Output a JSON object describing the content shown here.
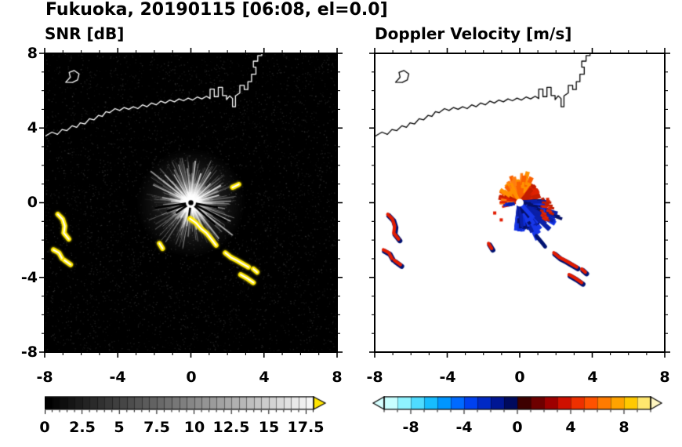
{
  "title": "Fukuoka, 20190115 [06:08, el=0.0]",
  "panels": {
    "snr": {
      "label": "SNR [dB]",
      "x_ticks": [
        "-8",
        "-4",
        "0",
        "4",
        "8"
      ],
      "y_ticks": [
        "8",
        "4",
        "0",
        "-4",
        "-8"
      ],
      "colorbar_ticks": [
        "0",
        "2.5",
        "5",
        "7.5",
        "10",
        "12.5",
        "15",
        "17.5"
      ]
    },
    "doppler": {
      "label": "Doppler Velocity [m/s]",
      "x_ticks": [
        "-8",
        "-4",
        "0",
        "4",
        "8"
      ],
      "colorbar_ticks": [
        "-8",
        "-4",
        "0",
        "4",
        "8"
      ]
    }
  },
  "chart_data": [
    {
      "type": "heatmap",
      "title": "SNR [dB]",
      "xlim": [
        -8,
        8
      ],
      "ylim": [
        -8,
        8
      ],
      "x_ticks": [
        -8,
        -4,
        0,
        4,
        8
      ],
      "y_ticks": [
        -8,
        -4,
        0,
        4,
        8
      ],
      "colorbar": {
        "range": [
          0,
          18
        ],
        "tick_values": [
          0,
          2.5,
          5,
          7.5,
          10,
          12.5,
          15,
          17.5
        ],
        "colormap": "black-to-white grayscale, yellow overflow arrow"
      },
      "content": "Radar PPI scan: bright radial SNR streaks from radar at origin on black background; yellow high-SNR echo arcs near (-7.3,-0.6)..(-6.7,-2.0), (-7.5,-2.5)..(-6.6,-3.3), chain from (0,-0.9) to (3.4,-4.3), small echo (2.3,0.8)..(2.6,1.0); white coastline of Fukuoka bay across the top"
    },
    {
      "type": "heatmap",
      "title": "Doppler Velocity [m/s]",
      "xlim": [
        -8,
        8
      ],
      "ylim": [
        -8,
        8
      ],
      "x_ticks": [
        -8,
        -4,
        0,
        4,
        8
      ],
      "y_ticks": [
        -8,
        -4,
        0,
        4,
        8
      ],
      "colorbar": {
        "range": [
          -10,
          10
        ],
        "tick_values": [
          -8,
          -4,
          0,
          4,
          8
        ],
        "colormap": "pale cyan to blue to dark navy (negative); dark red to red to orange to yellow (positive)"
      },
      "content": "Doppler velocity fan at origin: positive (orange/red) lobe toward N-NW, negative (navy/blue) lobe toward E-SE, white dot at radar; scattered red/navy echoes matching SNR yellow arcs; black coastline across the top"
    }
  ],
  "render": {
    "plot": {
      "xmin": -8,
      "xmax": 8,
      "tick_step": 1,
      "major_step": 4
    },
    "coast": {
      "main": [
        [
          -8.0,
          3.55
        ],
        [
          -7.6,
          3.78
        ],
        [
          -7.3,
          3.66
        ],
        [
          -7.05,
          3.92
        ],
        [
          -6.78,
          3.86
        ],
        [
          -6.5,
          4.12
        ],
        [
          -6.25,
          4.04
        ],
        [
          -6.05,
          4.28
        ],
        [
          -5.8,
          4.22
        ],
        [
          -5.55,
          4.5
        ],
        [
          -5.3,
          4.44
        ],
        [
          -5.05,
          4.68
        ],
        [
          -4.85,
          4.62
        ],
        [
          -4.65,
          4.88
        ],
        [
          -4.45,
          4.82
        ],
        [
          -4.15,
          5.04
        ],
        [
          -3.9,
          4.94
        ],
        [
          -3.65,
          5.1
        ],
        [
          -3.4,
          5.0
        ],
        [
          -3.15,
          5.14
        ],
        [
          -2.9,
          5.04
        ],
        [
          -2.65,
          5.24
        ],
        [
          -2.4,
          5.14
        ],
        [
          -2.15,
          5.34
        ],
        [
          -1.9,
          5.24
        ],
        [
          -1.65,
          5.44
        ],
        [
          -1.4,
          5.34
        ],
        [
          -1.15,
          5.5
        ],
        [
          -0.9,
          5.4
        ],
        [
          -0.65,
          5.56
        ],
        [
          -0.4,
          5.46
        ],
        [
          -0.15,
          5.6
        ],
        [
          0.1,
          5.5
        ],
        [
          0.35,
          5.66
        ],
        [
          0.6,
          5.56
        ],
        [
          0.85,
          5.7
        ],
        [
          1.05,
          5.58
        ],
        [
          1.05,
          6.08
        ],
        [
          1.28,
          6.08
        ],
        [
          1.28,
          5.68
        ],
        [
          1.5,
          5.68
        ],
        [
          1.5,
          6.18
        ],
        [
          1.73,
          6.18
        ],
        [
          1.73,
          5.74
        ],
        [
          1.95,
          5.74
        ],
        [
          1.95,
          5.52
        ],
        [
          2.12,
          5.72
        ],
        [
          2.28,
          5.58
        ],
        [
          2.28,
          5.14
        ],
        [
          2.44,
          5.14
        ],
        [
          2.44,
          5.72
        ],
        [
          2.68,
          5.88
        ],
        [
          2.68,
          6.28
        ],
        [
          2.92,
          6.28
        ],
        [
          2.92,
          6.06
        ],
        [
          3.12,
          6.06
        ],
        [
          3.12,
          6.48
        ],
        [
          3.32,
          6.48
        ],
        [
          3.32,
          6.88
        ],
        [
          3.56,
          6.88
        ],
        [
          3.56,
          7.26
        ],
        [
          3.42,
          7.26
        ],
        [
          3.42,
          7.58
        ],
        [
          3.66,
          7.58
        ],
        [
          3.66,
          7.88
        ],
        [
          3.88,
          7.88
        ],
        [
          3.88,
          8.05
        ]
      ],
      "island": [
        [
          -6.85,
          6.45
        ],
        [
          -6.6,
          6.72
        ],
        [
          -6.66,
          6.98
        ],
        [
          -6.38,
          7.08
        ],
        [
          -6.12,
          6.9
        ],
        [
          -6.2,
          6.58
        ],
        [
          -6.48,
          6.44
        ],
        [
          -6.85,
          6.45
        ]
      ]
    },
    "snr": {
      "bg": "#000000",
      "coast": "#ffffff",
      "echo": "#ffe800",
      "echo_core": "#ffffff",
      "spokes": [
        [
          170,
          1.6
        ],
        [
          155,
          2.3
        ],
        [
          142,
          2.8
        ],
        [
          133,
          2.1
        ],
        [
          121,
          1.8
        ],
        [
          108,
          2.2
        ],
        [
          96,
          1.9
        ],
        [
          84,
          2.3
        ],
        [
          71,
          1.7
        ],
        [
          57,
          2.0
        ],
        [
          44,
          1.5
        ],
        [
          30,
          1.9
        ],
        [
          15,
          1.6
        ],
        [
          2,
          2.2
        ],
        [
          -10,
          1.9
        ],
        [
          -25,
          2.4
        ],
        [
          -38,
          2.9
        ],
        [
          -52,
          2.5
        ],
        [
          -64,
          1.9
        ],
        [
          -78,
          1.5
        ],
        [
          -100,
          1.3
        ],
        [
          -125,
          1.0
        ],
        [
          -150,
          0.9
        ],
        [
          176,
          1.1
        ]
      ],
      "shadows": [
        [
          188,
          2.0
        ],
        [
          200,
          1.4
        ],
        [
          215,
          1.0
        ],
        [
          318,
          1.8
        ],
        [
          333,
          2.2
        ],
        [
          350,
          1.5
        ],
        [
          262,
          0.9
        ]
      ],
      "echo_paths": [
        [
          [
            -7.28,
            -0.62
          ],
          [
            -7.02,
            -0.88
          ],
          [
            -6.9,
            -1.25
          ],
          [
            -6.95,
            -1.62
          ],
          [
            -6.68,
            -1.95
          ]
        ],
        [
          [
            -7.52,
            -2.52
          ],
          [
            -7.22,
            -2.68
          ],
          [
            -7.05,
            -2.98
          ]
        ],
        [
          [
            -6.92,
            -3.08
          ],
          [
            -6.58,
            -3.32
          ]
        ],
        [
          [
            -0.05,
            -0.85
          ],
          [
            0.28,
            -1.08
          ],
          [
            0.55,
            -1.38
          ],
          [
            0.85,
            -1.62
          ],
          [
            1.12,
            -1.95
          ],
          [
            1.38,
            -2.28
          ]
        ],
        [
          [
            1.88,
            -2.68
          ],
          [
            2.18,
            -2.92
          ],
          [
            2.5,
            -3.08
          ],
          [
            2.85,
            -3.28
          ],
          [
            3.15,
            -3.45
          ]
        ],
        [
          [
            2.72,
            -3.85
          ],
          [
            3.08,
            -4.05
          ],
          [
            3.42,
            -4.28
          ]
        ],
        [
          [
            3.42,
            -3.55
          ],
          [
            3.62,
            -3.72
          ]
        ],
        [
          [
            2.28,
            0.82
          ],
          [
            2.62,
            0.98
          ]
        ],
        [
          [
            -1.72,
            -2.18
          ],
          [
            -1.55,
            -2.45
          ]
        ]
      ]
    },
    "doppler": {
      "bg": "#ffffff",
      "coast": "#000000",
      "red_echo": "#e21b00",
      "navy_echo": "#001272",
      "orange_lobe": [
        "#ff7d12",
        "#ff9100",
        "#fa6000"
      ],
      "red_lobe": [
        "#df2300",
        "#c21d00"
      ],
      "blue_lobe": [
        "#0a1fa8",
        "#0c2bd4",
        "#051068",
        "#1737e8"
      ],
      "red_dots": [
        [
          -1.38,
          -0.55
        ],
        [
          -1.02,
          -0.92
        ]
      ],
      "navy_paths": [
        [
          [
            0.92,
            -1.78
          ],
          [
            1.18,
            -2.08
          ],
          [
            1.4,
            -2.35
          ]
        ]
      ],
      "echo_paths": [
        [
          [
            -7.28,
            -0.62
          ],
          [
            -7.02,
            -0.88
          ],
          [
            -6.9,
            -1.25
          ],
          [
            -6.95,
            -1.62
          ],
          [
            -6.68,
            -1.95
          ]
        ],
        [
          [
            -7.52,
            -2.52
          ],
          [
            -7.22,
            -2.68
          ],
          [
            -7.05,
            -2.98
          ]
        ],
        [
          [
            -6.92,
            -3.08
          ],
          [
            -6.58,
            -3.32
          ]
        ],
        [
          [
            1.88,
            -2.68
          ],
          [
            2.18,
            -2.92
          ],
          [
            2.5,
            -3.08
          ],
          [
            2.85,
            -3.28
          ],
          [
            3.15,
            -3.45
          ]
        ],
        [
          [
            2.72,
            -3.85
          ],
          [
            3.08,
            -4.05
          ],
          [
            3.42,
            -4.28
          ]
        ],
        [
          [
            3.42,
            -3.55
          ],
          [
            3.62,
            -3.72
          ]
        ],
        [
          [
            -1.72,
            -2.18
          ],
          [
            -1.55,
            -2.45
          ]
        ]
      ]
    },
    "cbar_snr": {
      "segments": 36,
      "max": 18,
      "overflow": "#ffe400"
    },
    "cbar_doppler": {
      "colors": [
        "#c8ffff",
        "#8ff3ff",
        "#4fdcff",
        "#17bdff",
        "#0096ff",
        "#006aff",
        "#0041f0",
        "#0029c4",
        "#001694",
        "#000a5e",
        "#3d0000",
        "#6e0000",
        "#9e0000",
        "#cf1000",
        "#ee3000",
        "#ff5200",
        "#ff7b00",
        "#ffa300",
        "#ffc900",
        "#ffe76e"
      ],
      "under": "#d6ffff",
      "over": "#fff6c0"
    }
  }
}
